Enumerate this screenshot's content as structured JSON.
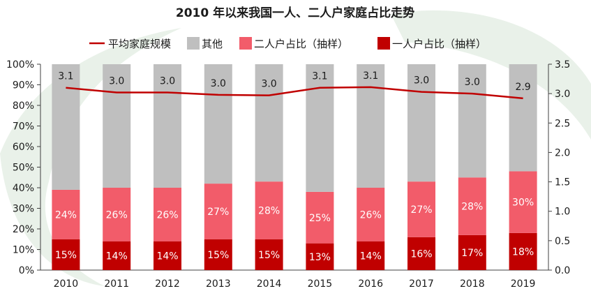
{
  "colors": {
    "line": "#c00000",
    "other": "#bfbfbf",
    "two_person": "#f25c6a",
    "one_person": "#c00000",
    "watermark": "#e9f1e9"
  },
  "chart_data": {
    "type": "bar",
    "stacked": true,
    "title": "2010 年以来我国一人、二人户家庭占比走势",
    "categories": [
      "2010",
      "2011",
      "2012",
      "2013",
      "2014",
      "2015",
      "2016",
      "2017",
      "2018",
      "2019"
    ],
    "series": [
      {
        "name": "一人户占比（抽样）",
        "key": "one_person",
        "values": [
          15,
          14,
          14,
          15,
          15,
          13,
          14,
          16,
          17,
          18
        ],
        "labels": [
          "15%",
          "14%",
          "14%",
          "15%",
          "15%",
          "13%",
          "14%",
          "16%",
          "17%",
          "18%"
        ]
      },
      {
        "name": "二人户占比（抽样）",
        "key": "two_person",
        "values": [
          24,
          26,
          26,
          27,
          28,
          25,
          26,
          27,
          28,
          30
        ],
        "labels": [
          "24%",
          "26%",
          "26%",
          "27%",
          "28%",
          "25%",
          "26%",
          "27%",
          "28%",
          "30%"
        ]
      },
      {
        "name": "其他",
        "key": "other",
        "values": [
          61,
          60,
          60,
          58,
          57,
          62,
          60,
          57,
          55,
          52
        ]
      }
    ],
    "line_series": {
      "name": "平均家庭规模",
      "values": [
        3.1,
        3.02,
        3.02,
        2.98,
        2.97,
        3.1,
        3.11,
        3.03,
        3.0,
        2.92
      ],
      "labels": [
        "3.1",
        "3.0",
        "3.0",
        "3.0",
        "3.0",
        "3.1",
        "3.1",
        "3.0",
        "3.0",
        "2.9"
      ]
    },
    "y_left": {
      "min": 0,
      "max": 100,
      "ticks": [
        "0%",
        "10%",
        "20%",
        "30%",
        "40%",
        "50%",
        "60%",
        "70%",
        "80%",
        "90%",
        "100%"
      ]
    },
    "y_right": {
      "min": 0,
      "max": 3.5,
      "ticks": [
        "0.0",
        "0.5",
        "1.0",
        "1.5",
        "2.0",
        "2.5",
        "3.0",
        "3.5"
      ]
    },
    "legend": {
      "position": "top",
      "items": [
        {
          "label": "平均家庭规模",
          "kind": "line",
          "key": "line"
        },
        {
          "label": "其他",
          "kind": "box",
          "key": "other"
        },
        {
          "label": "二人户占比（抽样）",
          "kind": "box",
          "key": "two_person"
        },
        {
          "label": "一人户占比（抽样）",
          "kind": "box",
          "key": "one_person"
        }
      ]
    }
  }
}
